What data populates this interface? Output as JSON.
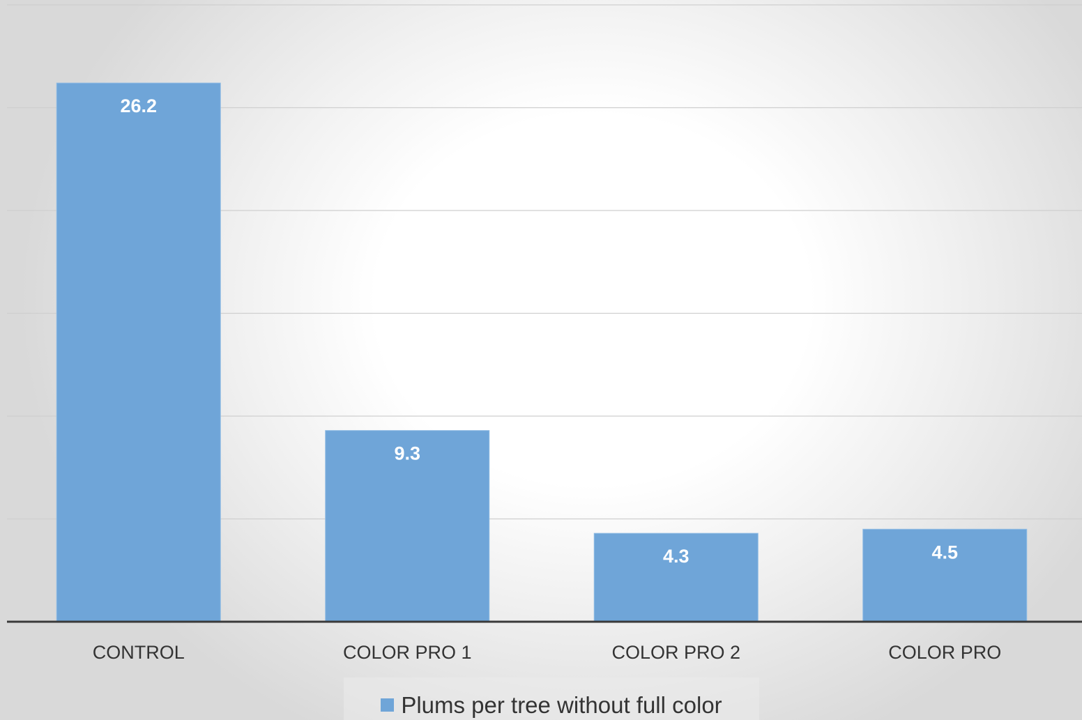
{
  "chart_data": {
    "type": "bar",
    "categories": [
      "CONTROL",
      "COLOR PRO 1",
      "COLOR PRO 2",
      "COLOR PRO"
    ],
    "series": [
      {
        "name": "Plums per tree without full color",
        "values": [
          26.2,
          9.3,
          4.3,
          4.5
        ],
        "color": "#6fa5d8"
      }
    ],
    "data_labels": [
      "26.2",
      "9.3",
      "4.3",
      "4.5"
    ],
    "ylim": [
      0,
      30
    ],
    "y_gridlines": [
      5,
      10,
      15,
      20,
      25,
      30
    ],
    "grid": true,
    "legend_position": "bottom",
    "title": "",
    "xlabel": "",
    "ylabel": ""
  }
}
